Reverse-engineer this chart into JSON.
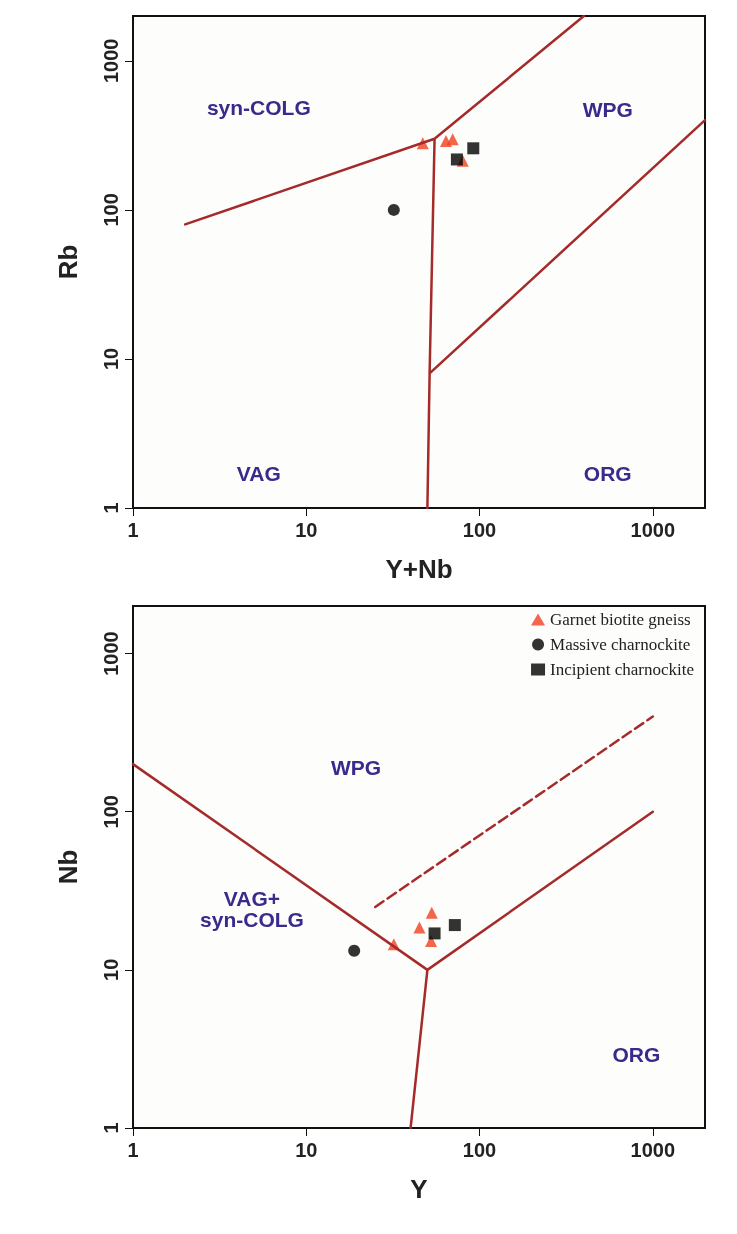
{
  "chart_data": [
    {
      "type": "scatter",
      "xlabel": "Y+Nb",
      "ylabel": "Rb",
      "log": "xy",
      "xlim": [
        1,
        2000
      ],
      "ylim": [
        1,
        2000
      ],
      "xticks": [
        1,
        10,
        100,
        1000
      ],
      "yticks": [
        1,
        10,
        100,
        1000
      ],
      "grid": false,
      "legend": false,
      "annotations": [
        "syn-COLG",
        "WPG",
        "VAG",
        "ORG"
      ],
      "series": [
        {
          "type": "line",
          "color": "#a52a2a",
          "x": [
            2,
            55,
            400,
            null,
            55,
            51.5,
            50,
            null,
            51.5,
            2000
          ],
          "values": [
            80,
            300,
            2000,
            null,
            300,
            8,
            1,
            null,
            8,
            400
          ],
          "line_style": "solid",
          "marker": "none"
        },
        {
          "color": "#f0401e",
          "marker": "triangle",
          "x": [
            47,
            64,
            70,
            80
          ],
          "values": [
            280,
            290,
            298,
            214
          ]
        },
        {
          "color": "#000000",
          "marker": "circle",
          "x": [
            32
          ],
          "values": [
            100
          ]
        },
        {
          "color": "#000000",
          "marker": "square",
          "x": [
            74,
            92
          ],
          "values": [
            218,
            259
          ]
        }
      ]
    },
    {
      "type": "scatter",
      "xlabel": "Y",
      "ylabel": "Nb",
      "log": "xy",
      "xlim": [
        1,
        2000
      ],
      "ylim": [
        1,
        2000
      ],
      "xticks": [
        1,
        10,
        100,
        1000
      ],
      "yticks": [
        1,
        10,
        100,
        1000
      ],
      "grid": false,
      "legend": "top right",
      "annotations": [
        "WPG",
        "VAG+\nsyn-COLG",
        "ORG"
      ],
      "series": [
        {
          "type": "line",
          "color": "#a52a2a",
          "x": [
            1,
            50,
            1000,
            null,
            50,
            40
          ],
          "values": [
            200,
            10,
            100,
            null,
            10,
            1
          ],
          "line_style": "solid",
          "marker": "none"
        },
        {
          "type": "line",
          "color": "#a52a2a",
          "x": [
            25,
            1000
          ],
          "values": [
            25,
            400
          ],
          "line_style": "dashed",
          "marker": "none"
        },
        {
          "name": "Garnet biotite gneiss",
          "color": "#f0401e",
          "marker": "triangle",
          "x": [
            32,
            53,
            45,
            52.5
          ],
          "values": [
            14.5,
            23,
            18.5,
            15.2
          ]
        },
        {
          "name": "Massive charnockite",
          "color": "#000000",
          "marker": "circle",
          "x": [
            18.9
          ],
          "values": [
            13.2
          ]
        },
        {
          "name": "Incipient charnockite",
          "color": "#000000",
          "marker": "square",
          "x": [
            55,
            72
          ],
          "values": [
            17,
            19.2
          ]
        }
      ]
    }
  ]
}
